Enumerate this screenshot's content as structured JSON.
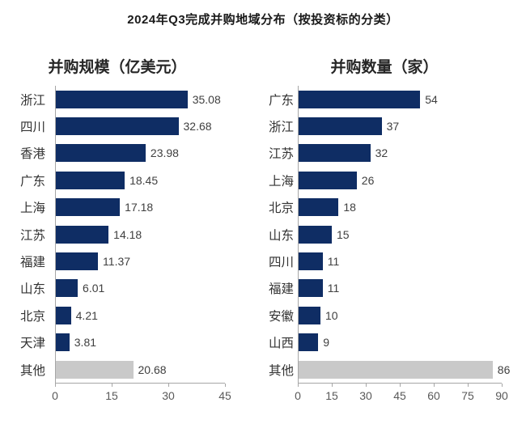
{
  "page": {
    "title": "2024年Q3完成并购地域分布（按投资标的分类）"
  },
  "colors": {
    "bar_primary": "#0f2d64",
    "bar_other": "#c9c9c9",
    "axis_line": "#a6a6a6"
  },
  "chart_data": [
    {
      "type": "bar",
      "orientation": "horizontal",
      "title": "并购规模（亿美元）",
      "categories": [
        "浙江",
        "四川",
        "香港",
        "广东",
        "上海",
        "江苏",
        "福建",
        "山东",
        "北京",
        "天津",
        "其他"
      ],
      "values": [
        35.08,
        32.68,
        23.98,
        18.45,
        17.18,
        14.18,
        11.37,
        6.01,
        4.21,
        3.81,
        20.68
      ],
      "value_labels": [
        "35.08",
        "32.68",
        "23.98",
        "18.45",
        "17.18",
        "14.18",
        "11.37",
        "6.01",
        "4.21",
        "3.81",
        "20.68"
      ],
      "other_category": "其他",
      "xlim": [
        0,
        45
      ],
      "xticks": [
        0,
        15,
        30,
        45
      ],
      "grid": false,
      "legend": false
    },
    {
      "type": "bar",
      "orientation": "horizontal",
      "title": "并购数量（家）",
      "categories": [
        "广东",
        "浙江",
        "江苏",
        "上海",
        "北京",
        "山东",
        "四川",
        "福建",
        "安徽",
        "山西",
        "其他"
      ],
      "values": [
        54,
        37,
        32,
        26,
        18,
        15,
        11,
        11,
        10,
        9,
        86
      ],
      "value_labels": [
        "54",
        "37",
        "32",
        "26",
        "18",
        "15",
        "11",
        "11",
        "10",
        "9",
        "86"
      ],
      "other_category": "其他",
      "xlim": [
        0,
        90
      ],
      "xticks": [
        0,
        15,
        30,
        45,
        60,
        75,
        90
      ],
      "grid": false,
      "legend": false
    }
  ]
}
